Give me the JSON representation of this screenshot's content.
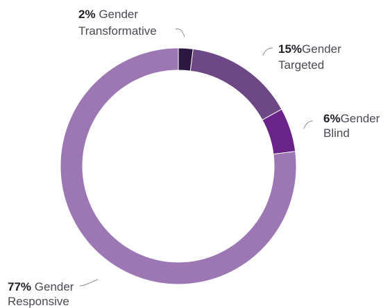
{
  "chart_data": {
    "type": "pie",
    "slices": [
      {
        "pct_label": "2%",
        "line1": "Gender",
        "line2": "Transformative",
        "value": 2,
        "color": "#2b1740"
      },
      {
        "pct_label": "15%",
        "line1": "Gender",
        "line2": "Targeted",
        "value": 15,
        "color": "#6e4787"
      },
      {
        "pct_label": "6%",
        "line1": "Gender",
        "line2": "Blind",
        "value": 6,
        "color": "#6a2489"
      },
      {
        "pct_label": "77%",
        "line1": "Gender",
        "line2": "Responsive",
        "value": 77,
        "color": "#9c77b4"
      }
    ]
  }
}
